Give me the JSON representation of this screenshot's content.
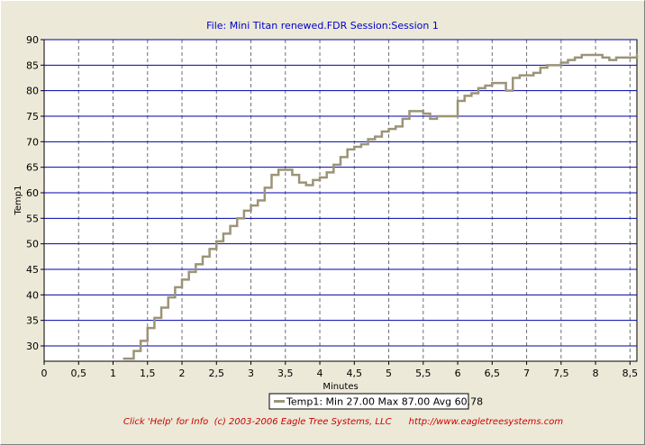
{
  "chart_data": {
    "type": "line",
    "title": "File: Mini Titan renewed.FDR   Session:Session 1",
    "xlabel": "Minutes",
    "ylabel": "Temp1",
    "xlim": [
      0,
      8.6
    ],
    "ylim": [
      27,
      90
    ],
    "x_ticks": [
      "0",
      "0,5",
      "1",
      "1,5",
      "2",
      "2,5",
      "3",
      "3,5",
      "4",
      "4,5",
      "5",
      "5,5",
      "6",
      "6,5",
      "7",
      "7,5",
      "8",
      "8,5"
    ],
    "y_ticks": [
      "30",
      "35",
      "40",
      "45",
      "50",
      "55",
      "60",
      "65",
      "70",
      "75",
      "80",
      "85",
      "90"
    ],
    "grid": true,
    "legend_position": "bottom-center",
    "series": [
      {
        "name": "Temp1",
        "legend_label": "Temp1:  Min 27.00 Max 87.00 Avg 60.78",
        "color": "#9c9478",
        "x": [
          1.15,
          1.3,
          1.4,
          1.5,
          1.6,
          1.7,
          1.8,
          1.9,
          2.0,
          2.1,
          2.2,
          2.3,
          2.4,
          2.5,
          2.6,
          2.7,
          2.8,
          2.9,
          3.0,
          3.1,
          3.2,
          3.3,
          3.4,
          3.5,
          3.6,
          3.7,
          3.8,
          3.9,
          4.0,
          4.1,
          4.2,
          4.3,
          4.4,
          4.5,
          4.6,
          4.7,
          4.8,
          4.9,
          5.0,
          5.1,
          5.2,
          5.3,
          5.4,
          5.5,
          5.6,
          5.7,
          5.8,
          5.9,
          6.0,
          6.1,
          6.2,
          6.3,
          6.4,
          6.5,
          6.6,
          6.7,
          6.8,
          6.9,
          7.0,
          7.1,
          7.2,
          7.3,
          7.4,
          7.5,
          7.6,
          7.7,
          7.8,
          7.9,
          8.0,
          8.1,
          8.2,
          8.3,
          8.4,
          8.5,
          8.6
        ],
        "values": [
          27.5,
          29,
          31,
          33.5,
          35.5,
          37.5,
          39.5,
          41.5,
          43,
          44.5,
          46,
          47.5,
          49,
          50.5,
          52,
          53.5,
          55,
          56.5,
          57.5,
          58.5,
          61,
          63.5,
          64.5,
          64.5,
          63.5,
          62,
          61.5,
          62.5,
          63,
          64,
          65.5,
          67,
          68.5,
          69,
          69.5,
          70.5,
          71,
          72,
          72.5,
          73,
          74.5,
          76,
          76,
          75.5,
          74.5,
          75,
          75,
          75,
          78,
          79,
          79.5,
          80.5,
          81,
          81.5,
          81.5,
          80,
          82.5,
          83,
          83,
          83.5,
          84.5,
          85,
          85,
          85.5,
          86,
          86.5,
          87,
          87,
          87,
          86.5,
          86,
          86.5,
          86.5,
          86.5,
          87
        ]
      }
    ]
  },
  "footer": {
    "help_text": "Click 'Help' for Info  (c) 2003-2006 Eagle Tree Systems, LLC      http://www.eagletreesystems.com"
  }
}
